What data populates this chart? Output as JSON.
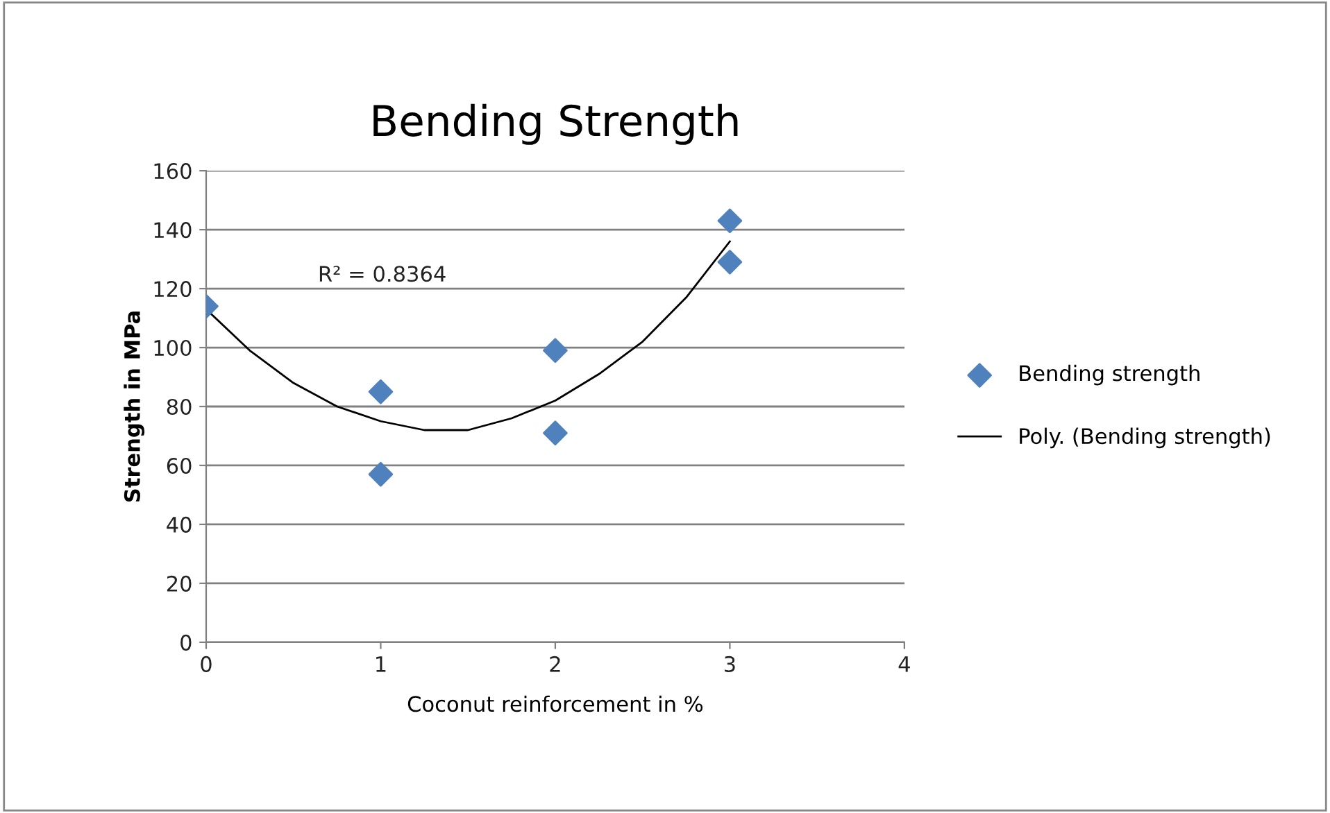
{
  "chart_data": {
    "type": "scatter",
    "title": "Bending Strength",
    "xlabel": "Coconut reinforcement in %",
    "ylabel": "Strength in MPa",
    "annotations": [
      "R² = 0.8364"
    ],
    "series": [
      {
        "name": "Bending strength",
        "color": "#4f81bd",
        "marker": "diamond",
        "x": [
          0,
          1,
          1,
          2,
          2,
          3,
          3
        ],
        "values": [
          114,
          85,
          57,
          99,
          71,
          143,
          129
        ]
      },
      {
        "name": "Poly. (Bending strength)",
        "type": "line",
        "color": "#000000",
        "marker": "none",
        "line_style": "solid",
        "x": [
          0,
          0.25,
          0.5,
          0.75,
          1,
          1.25,
          1.5,
          1.75,
          2,
          2.25,
          2.5,
          2.75,
          3
        ],
        "values": [
          113,
          99,
          88,
          80,
          75,
          72,
          72,
          76,
          82,
          91,
          102,
          117,
          136
        ]
      }
    ],
    "xlim": [
      0,
      4
    ],
    "xticks": [
      0,
      1,
      2,
      3,
      4
    ],
    "ylim": [
      0,
      160
    ],
    "yticks": [
      0,
      20,
      40,
      60,
      80,
      100,
      120,
      140,
      160
    ],
    "grid": "y",
    "legend": "right"
  }
}
